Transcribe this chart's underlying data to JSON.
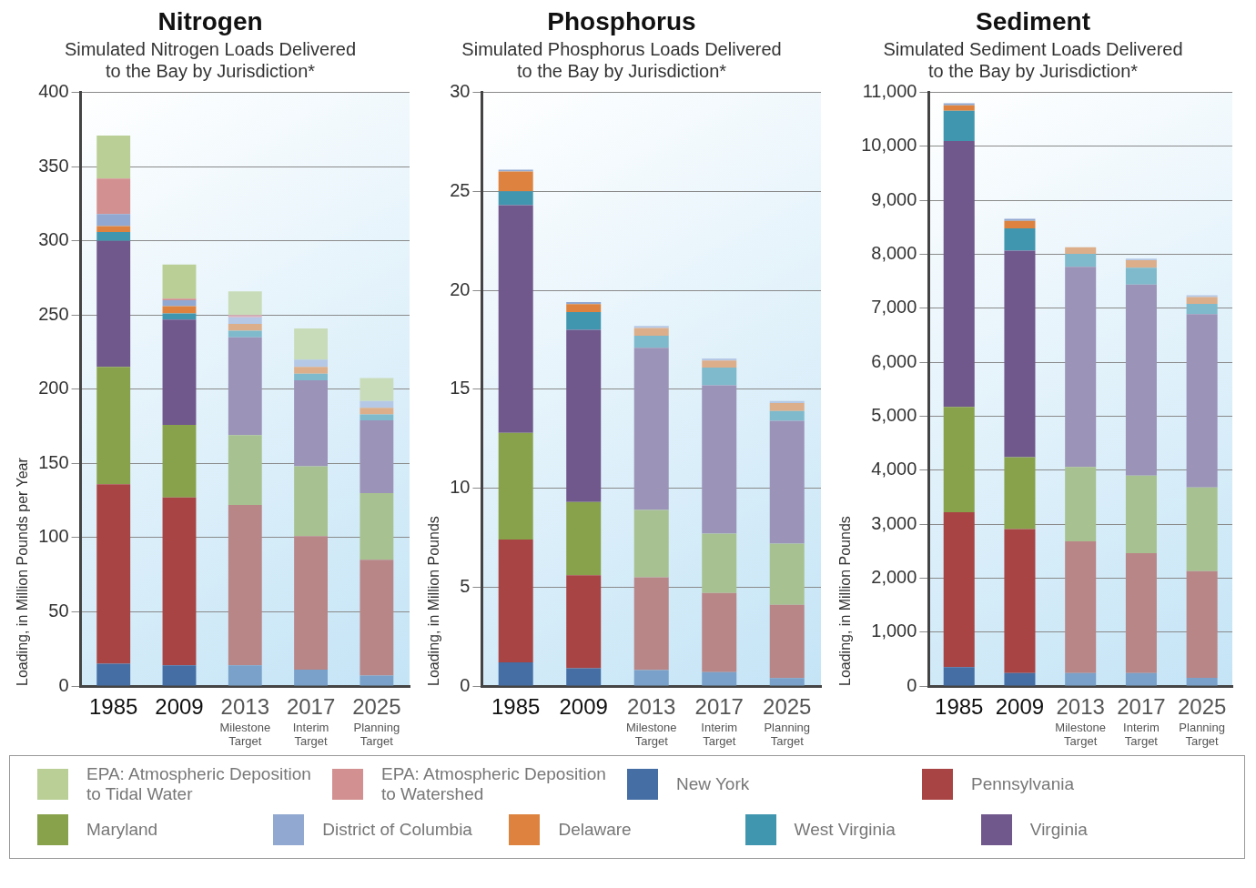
{
  "chart_data": [
    {
      "type": "bar",
      "stacked": true,
      "title": "Nitrogen",
      "subtitle": "Simulated Nitrogen Loads Delivered to the Bay by Jurisdiction*",
      "ylabel": "Loading, in Million Pounds per Year",
      "categories": [
        "1985",
        "2009",
        "2013\nMilestone\nTarget",
        "2017\nInterim\nTarget",
        "2025\nPlanning\nTarget"
      ],
      "ylim": [
        0,
        400
      ],
      "yticks": [
        0,
        50,
        100,
        150,
        200,
        250,
        300,
        350,
        400
      ],
      "grid": "y",
      "legend": "bottom",
      "series": [
        {
          "name": "New York",
          "color": "#446ea4",
          "colors": [
            "#446ea4",
            "#446ea4",
            "#79a1c9",
            "#79a1c9",
            "#79a1c9"
          ],
          "values": [
            15,
            14,
            14,
            11,
            7
          ]
        },
        {
          "name": "Pennsylvania",
          "color": "#a84443",
          "colors": [
            "#a84443",
            "#a84443",
            "#b88687",
            "#b88687",
            "#b88687"
          ],
          "values": [
            121,
            113,
            108,
            90,
            78
          ]
        },
        {
          "name": "Maryland",
          "color": "#88a24b",
          "colors": [
            "#88a24b",
            "#88a24b",
            "#a8c190",
            "#a8c190",
            "#a8c190"
          ],
          "values": [
            79,
            49,
            47,
            47,
            45
          ]
        },
        {
          "name": "Virginia",
          "color": "#70578c",
          "colors": [
            "#70578c",
            "#70578c",
            "#9b93b8",
            "#9b93b8",
            "#9b93b8"
          ],
          "values": [
            85,
            71,
            66,
            58,
            49
          ]
        },
        {
          "name": "West Virginia",
          "color": "#4096af",
          "colors": [
            "#4096af",
            "#4096af",
            "#7ebacb",
            "#7ebacb",
            "#7ebacb"
          ],
          "values": [
            6,
            4,
            4.5,
            4.5,
            4
          ]
        },
        {
          "name": "Delaware",
          "color": "#dd833f",
          "colors": [
            "#dd833f",
            "#dd833f",
            "#dcae8a",
            "#dcae8a",
            "#dcae8a"
          ],
          "values": [
            4,
            5,
            4.5,
            4.5,
            4.5
          ]
        },
        {
          "name": "District of Columbia",
          "color": "#91a8d1",
          "colors": [
            "#91a8d1",
            "#91a8d1",
            "#b5c8e5",
            "#b5c8e5",
            "#b5c8e5"
          ],
          "values": [
            8,
            4,
            4.5,
            5,
            4.5
          ]
        },
        {
          "name": "EPA: Atmospheric Deposition\nto Watershed",
          "color": "#d39090",
          "colors": [
            "#d39090",
            "#d39090",
            "#dcb0bc",
            "#dcb0bc",
            "#dcb0bc"
          ],
          "values": [
            24,
            1,
            1.5,
            null,
            null
          ]
        },
        {
          "name": "EPA: Atmospheric Deposition\nto Tidal Water",
          "color": "#b9cf96",
          "colors": [
            "#b9cf96",
            "#b9cf96",
            "#c9dcb9",
            "#c9dcb9",
            "#c9dcb9"
          ],
          "values": [
            29,
            23,
            16,
            21,
            15.5
          ]
        }
      ]
    },
    {
      "type": "bar",
      "stacked": true,
      "title": "Phosphorus",
      "subtitle": "Simulated Phosphorus Loads Delivered to the Bay by Jurisdiction*",
      "ylabel": "Loading, in Million Pounds",
      "categories": [
        "1985",
        "2009",
        "2013\nMilestone\nTarget",
        "2017\nInterim\nTarget",
        "2025\nPlanning\nTarget"
      ],
      "ylim": [
        0,
        30
      ],
      "yticks": [
        0,
        5,
        10,
        15,
        20,
        25,
        30
      ],
      "grid": "y",
      "series": [
        {
          "colors": [
            "#446ea4",
            "#446ea4",
            "#79a1c9",
            "#79a1c9",
            "#79a1c9"
          ],
          "values": [
            1.2,
            0.9,
            0.8,
            0.7,
            0.4
          ]
        },
        {
          "colors": [
            "#a84443",
            "#a84443",
            "#b88687",
            "#b88687",
            "#b88687"
          ],
          "values": [
            6.2,
            4.7,
            4.7,
            4.0,
            3.7
          ]
        },
        {
          "colors": [
            "#88a24b",
            "#88a24b",
            "#a8c190",
            "#a8c190",
            "#a8c190"
          ],
          "values": [
            5.4,
            3.7,
            3.4,
            3.0,
            3.1
          ]
        },
        {
          "colors": [
            "#70578c",
            "#70578c",
            "#9b93b8",
            "#9b93b8",
            "#9b93b8"
          ],
          "values": [
            11.5,
            8.7,
            8.2,
            7.5,
            6.2
          ]
        },
        {
          "colors": [
            "#4096af",
            "#4096af",
            "#7ebacb",
            "#7ebacb",
            "#7ebacb"
          ],
          "values": [
            0.7,
            0.9,
            0.6,
            0.9,
            0.5
          ]
        },
        {
          "colors": [
            "#dd833f",
            "#dd833f",
            "#dcae8a",
            "#dcae8a",
            "#dcae8a"
          ],
          "values": [
            1.0,
            0.4,
            0.4,
            0.35,
            0.4
          ]
        },
        {
          "colors": [
            "#91a8d1",
            "#91a8d1",
            "#b5c8e5",
            "#b5c8e5",
            "#b5c8e5"
          ],
          "values": [
            0.1,
            0.1,
            0.1,
            0.1,
            0.1
          ]
        }
      ]
    },
    {
      "type": "bar",
      "stacked": true,
      "title": "Sediment",
      "subtitle": "Simulated Sediment Loads Delivered to the Bay by Jurisdiction*",
      "ylabel": "Loading, in Million Pounds",
      "categories": [
        "1985",
        "2009",
        "2013\nMilestone\nTarget",
        "2017\nInterim\nTarget",
        "2025\nPlanning\nTarget"
      ],
      "ylim": [
        0,
        11000
      ],
      "yticks": [
        {
          "value": 0,
          "label": "0"
        },
        {
          "value": 1000,
          "label": "1,000"
        },
        {
          "value": 2000,
          "label": "2,000"
        },
        {
          "value": 3000,
          "label": "3,000"
        },
        {
          "value": 4000,
          "label": "4,000"
        },
        {
          "value": 5000,
          "label": "5,000"
        },
        {
          "value": 6000,
          "label": "6,000"
        },
        {
          "value": 7000,
          "label": "7,000"
        },
        {
          "value": 8000,
          "label": "8,000"
        },
        {
          "value": 9000,
          "label": "9,000"
        },
        {
          "value": 10000,
          "label": "10,000"
        },
        {
          "value": 11000,
          "label": "11,000"
        }
      ],
      "grid": "y",
      "series": [
        {
          "colors": [
            "#446ea4",
            "#446ea4",
            "#79a1c9",
            "#79a1c9",
            "#79a1c9"
          ],
          "values": [
            350,
            240,
            240,
            240,
            150
          ]
        },
        {
          "colors": [
            "#a84443",
            "#a84443",
            "#b88687",
            "#b88687",
            "#b88687"
          ],
          "values": [
            2870,
            2670,
            2440,
            2220,
            1980
          ]
        },
        {
          "colors": [
            "#88a24b",
            "#88a24b",
            "#a8c190",
            "#a8c190",
            "#a8c190"
          ],
          "values": [
            1950,
            1330,
            1380,
            1440,
            1550
          ]
        },
        {
          "colors": [
            "#70578c",
            "#70578c",
            "#9b93b8",
            "#9b93b8",
            "#9b93b8"
          ],
          "values": [
            4930,
            3830,
            3710,
            3540,
            3210
          ]
        },
        {
          "colors": [
            "#4096af",
            "#4096af",
            "#7ebacb",
            "#7ebacb",
            "#7ebacb"
          ],
          "values": [
            560,
            410,
            240,
            310,
            190
          ]
        },
        {
          "colors": [
            "#dd833f",
            "#dd833f",
            "#dcae8a",
            "#dcae8a",
            "#dcae8a"
          ],
          "values": [
            100,
            140,
            120,
            140,
            130
          ]
        },
        {
          "colors": [
            "#91a8d1",
            "#91a8d1",
            "#b5c8e5",
            "#b5c8e5",
            "#b5c8e5"
          ],
          "values": [
            40,
            40,
            null,
            30,
            30
          ]
        }
      ]
    }
  ]
}
